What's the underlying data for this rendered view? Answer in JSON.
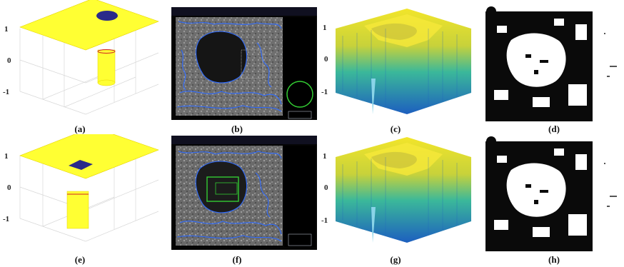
{
  "figure": {
    "panels": [
      {
        "id": "a",
        "caption": "(a)",
        "kind": "level-set-surface",
        "shape": "circle"
      },
      {
        "id": "b",
        "caption": "(b)",
        "kind": "ultrasound-contour",
        "roi_box": false
      },
      {
        "id": "c",
        "caption": "(c)",
        "kind": "3d-surface"
      },
      {
        "id": "d",
        "caption": "(d)",
        "kind": "binary-mask"
      },
      {
        "id": "e",
        "caption": "(e)",
        "kind": "level-set-surface",
        "shape": "square"
      },
      {
        "id": "f",
        "caption": "(f)",
        "kind": "ultrasound-contour",
        "roi_box": true
      },
      {
        "id": "g",
        "caption": "(g)",
        "kind": "3d-surface"
      },
      {
        "id": "h",
        "caption": "(h)",
        "kind": "binary-mask"
      }
    ],
    "axis_ticks": [
      "1",
      "0",
      "-1"
    ],
    "colors": {
      "plane": "#ffff33",
      "plane_edge": "#e6d400",
      "seed": "#2a2a8a",
      "contour": "#2f6bff",
      "roi_green": "#33cc33",
      "surface_top": "#f2e52a",
      "surface_bottom": "#1d5fbf"
    }
  }
}
